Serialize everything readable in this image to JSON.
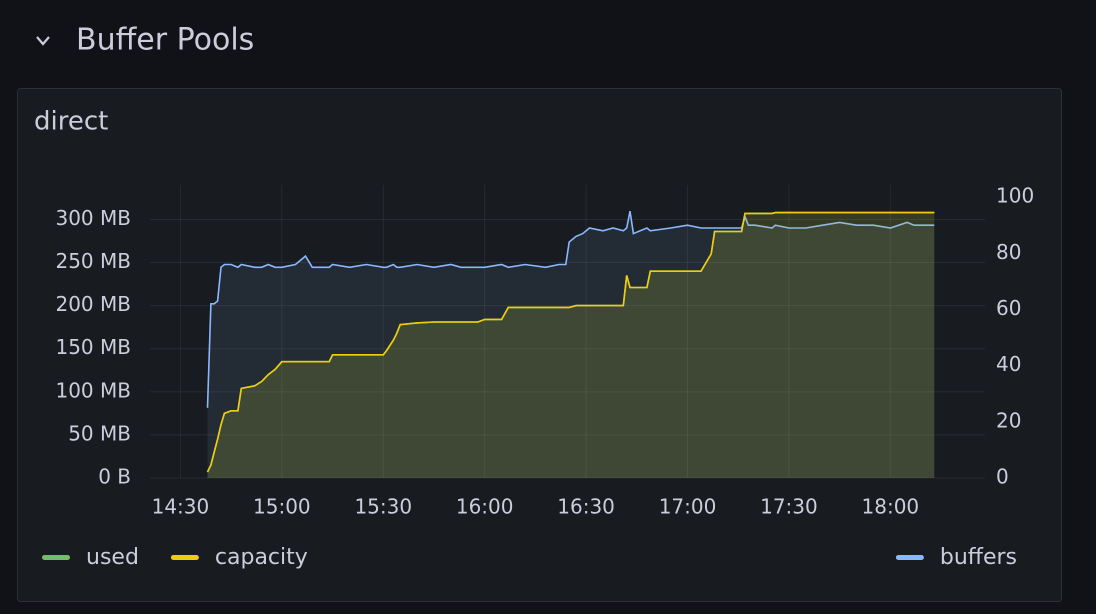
{
  "header": {
    "title": "Buffer Pools"
  },
  "chart_data": {
    "type": "line",
    "title": "direct",
    "x": [
      "14:38",
      "14:39",
      "14:40",
      "14:41",
      "14:42",
      "14:43",
      "14:45",
      "14:47",
      "14:48",
      "14:52",
      "14:54",
      "14:56",
      "14:58",
      "15:00",
      "15:04",
      "15:07",
      "15:09",
      "15:14",
      "15:15",
      "15:20",
      "15:25",
      "15:30",
      "15:31",
      "15:33",
      "15:34",
      "15:35",
      "15:40",
      "15:45",
      "15:50",
      "15:53",
      "15:58",
      "16:00",
      "16:05",
      "16:07",
      "16:12",
      "16:18",
      "16:22",
      "16:24",
      "16:25",
      "16:27",
      "16:29",
      "16:31",
      "16:35",
      "16:38",
      "16:41",
      "16:42",
      "16:43",
      "16:44",
      "16:46",
      "16:48",
      "16:49",
      "16:55",
      "17:00",
      "17:04",
      "17:07",
      "17:08",
      "17:12",
      "17:16",
      "17:17",
      "17:18",
      "17:20",
      "17:25",
      "17:26",
      "17:30",
      "17:35",
      "17:40",
      "17:45",
      "17:50",
      "17:55",
      "18:00",
      "18:05",
      "18:07",
      "18:13"
    ],
    "series": [
      {
        "name": "used",
        "color": "#73bf69",
        "axis": "y",
        "values": [
          7,
          15,
          30,
          45,
          62,
          75,
          78,
          78,
          104,
          107,
          112,
          120,
          126,
          135,
          135,
          135,
          135,
          135,
          143,
          143,
          143,
          143,
          148,
          160,
          168,
          178,
          180,
          181,
          181,
          181,
          181,
          184,
          184,
          198,
          198,
          198,
          198,
          198,
          198,
          200,
          200,
          200,
          200,
          200,
          200,
          235,
          221,
          221,
          221,
          221,
          240,
          240,
          240,
          240,
          260,
          286,
          286,
          286,
          307,
          307,
          307,
          307,
          308,
          308,
          308,
          308,
          308,
          308,
          308,
          308,
          308,
          308,
          308
        ]
      },
      {
        "name": "capacity",
        "color": "#f2cc0c",
        "axis": "y",
        "values": [
          7,
          15,
          30,
          45,
          62,
          75,
          78,
          78,
          104,
          107,
          112,
          120,
          126,
          135,
          135,
          135,
          135,
          135,
          143,
          143,
          143,
          143,
          148,
          160,
          168,
          178,
          180,
          181,
          181,
          181,
          181,
          184,
          184,
          198,
          198,
          198,
          198,
          198,
          198,
          200,
          200,
          200,
          200,
          200,
          200,
          235,
          221,
          221,
          221,
          221,
          240,
          240,
          240,
          240,
          260,
          286,
          286,
          286,
          307,
          307,
          307,
          307,
          308,
          308,
          308,
          308,
          308,
          308,
          308,
          308,
          308,
          308,
          308
        ]
      },
      {
        "name": "buffers",
        "color": "#8ab8ff",
        "axis": "y2",
        "values": [
          25,
          62,
          62,
          63,
          75,
          76,
          76,
          75,
          76,
          75,
          75,
          76,
          75,
          75,
          76,
          79,
          75,
          75,
          76,
          75,
          76,
          75,
          75,
          76,
          75,
          75,
          76,
          75,
          76,
          75,
          75,
          75,
          76,
          75,
          76,
          75,
          76,
          76,
          84,
          86,
          87,
          89,
          88,
          89,
          88,
          89,
          95,
          87,
          88,
          89,
          88,
          89,
          90,
          89,
          89,
          89,
          89,
          89,
          93,
          90,
          90,
          89,
          90,
          89,
          89,
          90,
          91,
          90,
          90,
          89,
          91,
          90,
          90
        ]
      }
    ],
    "xlim": [
      "14:21",
      "18:28"
    ],
    "xticks": [
      "14:30",
      "15:00",
      "15:30",
      "16:00",
      "16:30",
      "17:00",
      "17:30",
      "18:00"
    ],
    "ylim": [
      0,
      340
    ],
    "yticks": [
      {
        "value": 0,
        "label": "0 B"
      },
      {
        "value": 50,
        "label": "50 MB"
      },
      {
        "value": 100,
        "label": "100 MB"
      },
      {
        "value": 150,
        "label": "150 MB"
      },
      {
        "value": 200,
        "label": "200 MB"
      },
      {
        "value": 250,
        "label": "250 MB"
      },
      {
        "value": 300,
        "label": "300 MB"
      }
    ],
    "y2lim": [
      0,
      104.3
    ],
    "y2ticks": [
      0,
      20,
      40,
      60,
      80,
      100
    ],
    "grid": true
  }
}
